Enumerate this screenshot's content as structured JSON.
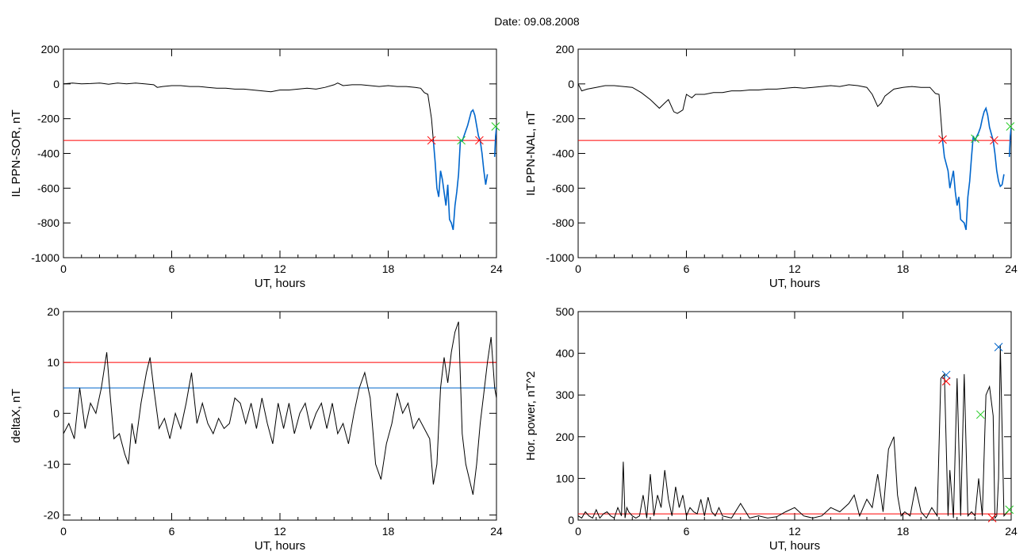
{
  "page": {
    "title": "Date:  09.08.2008"
  },
  "colors": {
    "trace": "#000000",
    "threshold_red": "#ff0000",
    "threshold_blue": "#0066cc",
    "highlight_blue": "#0066cc",
    "marker_green": "#22cc22"
  },
  "chart_data": [
    {
      "id": "sor",
      "type": "line",
      "xlabel": "UT, hours",
      "ylabel": "IL PPN-SOR, nT",
      "xlim": [
        0,
        24
      ],
      "ylim": [
        -1000,
        200
      ],
      "xticks": [
        0,
        6,
        12,
        18,
        24
      ],
      "yticks": [
        200,
        0,
        -200,
        -400,
        -600,
        -800,
        -1000
      ],
      "threshold_lines": [
        {
          "y": -325,
          "color": "red"
        }
      ],
      "series": [
        {
          "color": "black",
          "x": [
            0,
            0.5,
            1,
            1.5,
            2,
            2.5,
            3,
            3.5,
            4,
            4.5,
            5,
            5.2,
            5.5,
            6,
            6.5,
            7,
            7.5,
            8,
            8.5,
            9,
            9.5,
            10,
            10.5,
            11,
            11.5,
            12,
            12.5,
            13,
            13.5,
            14,
            14.5,
            15,
            15.2,
            15.5,
            16,
            16.5,
            17,
            17.5,
            18,
            18.5,
            19,
            19.5,
            19.8,
            20,
            20.2,
            20.4,
            20.5
          ],
          "y": [
            0,
            5,
            0,
            2,
            5,
            -2,
            5,
            0,
            5,
            0,
            -5,
            -20,
            -15,
            -10,
            -10,
            -15,
            -15,
            -20,
            -25,
            -25,
            -30,
            -30,
            -35,
            -40,
            -45,
            -35,
            -35,
            -30,
            -25,
            -30,
            -20,
            -5,
            5,
            -10,
            -5,
            -5,
            -10,
            -15,
            -10,
            -15,
            -15,
            -20,
            -25,
            -50,
            -60,
            -200,
            -325
          ]
        },
        {
          "color": "blue",
          "x": [
            20.5,
            20.6,
            20.7,
            20.8,
            20.9,
            21,
            21.2,
            21.3,
            21.4,
            21.5,
            21.6,
            21.7,
            21.8,
            21.9,
            22,
            22.1,
            22.2,
            22.3,
            22.4,
            22.5,
            22.6,
            22.7,
            22.8,
            23,
            23.1,
            23.2,
            23.3,
            23.4,
            23.5
          ],
          "y": [
            -325,
            -450,
            -600,
            -650,
            -500,
            -550,
            -700,
            -580,
            -780,
            -800,
            -840,
            -700,
            -620,
            -520,
            -325,
            -330,
            -300,
            -270,
            -240,
            -200,
            -160,
            -150,
            -180,
            -300,
            -325,
            -400,
            -500,
            -580,
            -520
          ]
        },
        {
          "color": "blue",
          "x": [
            23.9,
            23.95,
            24
          ],
          "y": [
            -420,
            -300,
            -250
          ]
        }
      ],
      "markers": [
        {
          "x": 20.4,
          "y": -325,
          "color": "red"
        },
        {
          "x": 22.05,
          "y": -325,
          "color": "green"
        },
        {
          "x": 23.05,
          "y": -325,
          "color": "red"
        },
        {
          "x": 23.95,
          "y": -245,
          "color": "green"
        }
      ]
    },
    {
      "id": "nal",
      "type": "line",
      "xlabel": "UT, hours",
      "ylabel": "IL PPN-NAL, nT",
      "xlim": [
        0,
        24
      ],
      "ylim": [
        -1000,
        200
      ],
      "xticks": [
        0,
        6,
        12,
        18,
        24
      ],
      "yticks": [
        200,
        0,
        -200,
        -400,
        -600,
        -800,
        -1000
      ],
      "threshold_lines": [
        {
          "y": -325,
          "color": "red"
        }
      ],
      "series": [
        {
          "color": "black",
          "x": [
            0,
            0.2,
            0.5,
            1,
            1.5,
            2,
            2.5,
            3,
            3.5,
            4,
            4.5,
            4.8,
            5,
            5.3,
            5.5,
            5.8,
            6,
            6.3,
            6.5,
            7,
            7.5,
            8,
            8.5,
            9,
            9.5,
            10,
            10.5,
            11,
            11.5,
            12,
            12.5,
            13,
            13.5,
            14,
            14.5,
            15,
            15.5,
            16,
            16.3,
            16.6,
            16.8,
            17,
            17.5,
            18,
            18.5,
            19,
            19.5,
            19.8,
            20,
            20.2
          ],
          "y": [
            0,
            -40,
            -30,
            -20,
            -10,
            -10,
            -15,
            -20,
            -50,
            -90,
            -140,
            -110,
            -90,
            -160,
            -170,
            -150,
            -60,
            -80,
            -60,
            -60,
            -50,
            -50,
            -40,
            -40,
            -35,
            -35,
            -30,
            -30,
            -25,
            -20,
            -25,
            -20,
            -15,
            -10,
            -15,
            -5,
            -10,
            -20,
            -60,
            -130,
            -110,
            -70,
            -30,
            -20,
            -15,
            -20,
            -20,
            -55,
            -60,
            -325
          ]
        },
        {
          "color": "blue",
          "x": [
            20.2,
            20.3,
            20.5,
            20.6,
            20.8,
            20.9,
            21,
            21.1,
            21.2,
            21.4,
            21.5,
            21.6,
            21.7,
            21.8,
            21.9,
            22,
            22.1,
            22.2,
            22.3,
            22.4,
            22.5,
            22.6,
            22.7,
            22.8,
            23,
            23.1,
            23.2,
            23.3,
            23.4,
            23.5,
            23.6
          ],
          "y": [
            -325,
            -420,
            -500,
            -600,
            -500,
            -620,
            -700,
            -650,
            -780,
            -800,
            -840,
            -650,
            -560,
            -420,
            -300,
            -325,
            -300,
            -280,
            -250,
            -200,
            -160,
            -140,
            -180,
            -250,
            -325,
            -400,
            -500,
            -560,
            -590,
            -580,
            -520
          ]
        },
        {
          "color": "blue",
          "x": [
            23.9,
            23.95,
            24
          ],
          "y": [
            -420,
            -300,
            -250
          ]
        }
      ],
      "markers": [
        {
          "x": 20.2,
          "y": -320,
          "color": "red"
        },
        {
          "x": 22.0,
          "y": -315,
          "color": "green"
        },
        {
          "x": 23.05,
          "y": -325,
          "color": "red"
        },
        {
          "x": 23.95,
          "y": -245,
          "color": "green"
        }
      ]
    },
    {
      "id": "deltax",
      "type": "line",
      "xlabel": "UT, hours",
      "ylabel": "deltaX, nT",
      "xlim": [
        0,
        24
      ],
      "ylim": [
        -21,
        20
      ],
      "xticks": [
        0,
        6,
        12,
        18,
        24
      ],
      "yticks": [
        20,
        10,
        0,
        -10,
        -20
      ],
      "threshold_lines": [
        {
          "y": 10,
          "color": "red"
        },
        {
          "y": 5,
          "color": "blue"
        }
      ],
      "series": [
        {
          "color": "black",
          "x": [
            0,
            0.3,
            0.6,
            0.9,
            1.2,
            1.5,
            1.8,
            2.1,
            2.4,
            2.6,
            2.8,
            3.1,
            3.4,
            3.6,
            3.8,
            4.0,
            4.3,
            4.6,
            4.8,
            5.0,
            5.3,
            5.6,
            5.9,
            6.2,
            6.5,
            6.8,
            7.1,
            7.4,
            7.7,
            8.0,
            8.3,
            8.6,
            8.9,
            9.2,
            9.5,
            9.8,
            10.1,
            10.4,
            10.7,
            11.0,
            11.3,
            11.6,
            11.9,
            12.2,
            12.5,
            12.8,
            13.1,
            13.4,
            13.7,
            14.0,
            14.3,
            14.6,
            14.9,
            15.2,
            15.5,
            15.8,
            16.1,
            16.4,
            16.7,
            17.0,
            17.3,
            17.6,
            17.9,
            18.2,
            18.5,
            18.8,
            19.1,
            19.4,
            19.7,
            20.0,
            20.3,
            20.5,
            20.7,
            20.9,
            21.1,
            21.3,
            21.5,
            21.7,
            21.9,
            22.1,
            22.3,
            22.5,
            22.7,
            22.9,
            23.1,
            23.3,
            23.5,
            23.7,
            23.9,
            24
          ],
          "y": [
            -4,
            -2,
            -5,
            5,
            -3,
            2,
            0,
            5,
            12,
            3,
            -5,
            -4,
            -8,
            -10,
            -2,
            -6,
            2,
            8,
            11,
            5,
            -3,
            -1,
            -5,
            0,
            -3,
            2,
            8,
            -2,
            2,
            -2,
            -4,
            -1,
            -3,
            -2,
            3,
            2,
            -2,
            2,
            -3,
            3,
            -2,
            -6,
            2,
            -3,
            2,
            -4,
            0,
            2,
            -3,
            0,
            2,
            -3,
            2,
            -4,
            -2,
            -6,
            0,
            5,
            8,
            3,
            -10,
            -13,
            -6,
            -2,
            4,
            0,
            2,
            -3,
            -1,
            -3,
            -5,
            -14,
            -10,
            5,
            11,
            6,
            12,
            16,
            18,
            -4,
            -10,
            -13,
            -16,
            -10,
            -2,
            4,
            10,
            15,
            5,
            3
          ]
        }
      ],
      "markers": []
    },
    {
      "id": "power",
      "type": "line",
      "xlabel": "UT, hours",
      "ylabel": "Hor. power, nT^2",
      "xlim": [
        0,
        24
      ],
      "ylim": [
        0,
        500
      ],
      "xticks": [
        0,
        6,
        12,
        18,
        24
      ],
      "yticks": [
        0,
        100,
        200,
        300,
        400,
        500
      ],
      "threshold_lines": [
        {
          "y": 15,
          "color": "red"
        }
      ],
      "series": [
        {
          "color": "black",
          "x": [
            0,
            0.2,
            0.4,
            0.6,
            0.8,
            1.0,
            1.2,
            1.4,
            1.6,
            1.8,
            2.0,
            2.2,
            2.4,
            2.5,
            2.6,
            2.7,
            2.8,
            3.0,
            3.2,
            3.4,
            3.6,
            3.8,
            4.0,
            4.2,
            4.4,
            4.6,
            4.8,
            5.0,
            5.2,
            5.4,
            5.6,
            5.8,
            6.0,
            6.2,
            6.4,
            6.6,
            6.8,
            7.0,
            7.2,
            7.4,
            7.6,
            7.8,
            8.0,
            8.5,
            9.0,
            9.5,
            10.0,
            10.5,
            11.0,
            11.5,
            12.0,
            12.5,
            13.0,
            13.5,
            14.0,
            14.5,
            15.0,
            15.3,
            15.6,
            16.0,
            16.3,
            16.6,
            16.9,
            17.2,
            17.5,
            17.7,
            17.9,
            18.1,
            18.4,
            18.7,
            19.0,
            19.3,
            19.6,
            19.9,
            20.1,
            20.3,
            20.5,
            20.6,
            20.8,
            21.0,
            21.2,
            21.4,
            21.6,
            21.8,
            22.0,
            22.2,
            22.4,
            22.6,
            22.8,
            23.0,
            23.1,
            23.2,
            23.3,
            23.4,
            23.6,
            23.8,
            24
          ],
          "y": [
            10,
            5,
            20,
            10,
            5,
            25,
            5,
            15,
            20,
            10,
            5,
            30,
            10,
            140,
            5,
            30,
            20,
            10,
            5,
            10,
            60,
            5,
            110,
            10,
            60,
            30,
            120,
            50,
            10,
            80,
            30,
            60,
            10,
            30,
            20,
            15,
            50,
            10,
            55,
            20,
            10,
            30,
            10,
            5,
            40,
            5,
            10,
            5,
            8,
            20,
            30,
            10,
            5,
            10,
            30,
            20,
            40,
            60,
            10,
            50,
            30,
            110,
            20,
            170,
            200,
            60,
            10,
            20,
            10,
            80,
            20,
            5,
            30,
            10,
            340,
            350,
            10,
            120,
            5,
            340,
            10,
            350,
            10,
            20,
            10,
            100,
            10,
            300,
            320,
            250,
            5,
            10,
            100,
            420,
            10,
            20,
            30
          ]
        }
      ],
      "markers": [
        {
          "x": 20.4,
          "y": 348,
          "color": "blue"
        },
        {
          "x": 20.4,
          "y": 333,
          "color": "red"
        },
        {
          "x": 22.3,
          "y": 253,
          "color": "green"
        },
        {
          "x": 22.95,
          "y": 5,
          "color": "red"
        },
        {
          "x": 23.3,
          "y": 415,
          "color": "blue"
        },
        {
          "x": 23.9,
          "y": 25,
          "color": "green"
        }
      ]
    }
  ]
}
